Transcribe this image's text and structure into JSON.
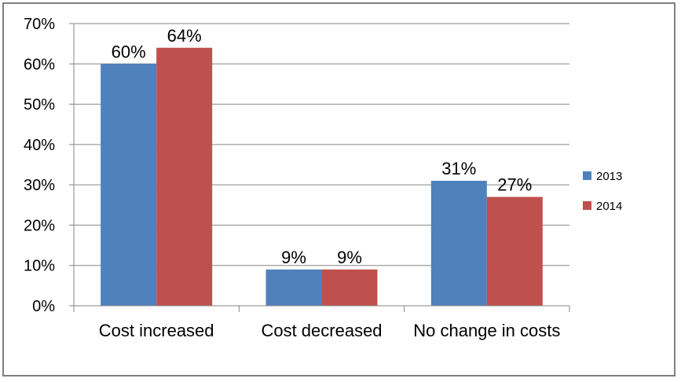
{
  "chart_data": {
    "type": "bar",
    "title": "",
    "xlabel": "",
    "ylabel": "",
    "categories": [
      "Cost increased",
      "Cost decreased",
      "No change in costs"
    ],
    "series": [
      {
        "name": "2013",
        "values": [
          60,
          9,
          31
        ],
        "labels": [
          "60%",
          "9%",
          "31%"
        ],
        "color": "#4f81bd"
      },
      {
        "name": "2014",
        "values": [
          64,
          9,
          27
        ],
        "labels": [
          "64%",
          "9%",
          "27%"
        ],
        "color": "#c0504d"
      }
    ],
    "ylim": [
      0,
      70
    ],
    "yticks": [
      0,
      10,
      20,
      30,
      40,
      50,
      60,
      70
    ],
    "ytick_labels": [
      "0%",
      "10%",
      "20%",
      "30%",
      "40%",
      "50%",
      "60%",
      "70%"
    ],
    "y_unit": "%",
    "grid": true,
    "gridline_color": "#868686",
    "legend": {
      "position": "right",
      "entries": [
        "2013",
        "2014"
      ]
    }
  }
}
